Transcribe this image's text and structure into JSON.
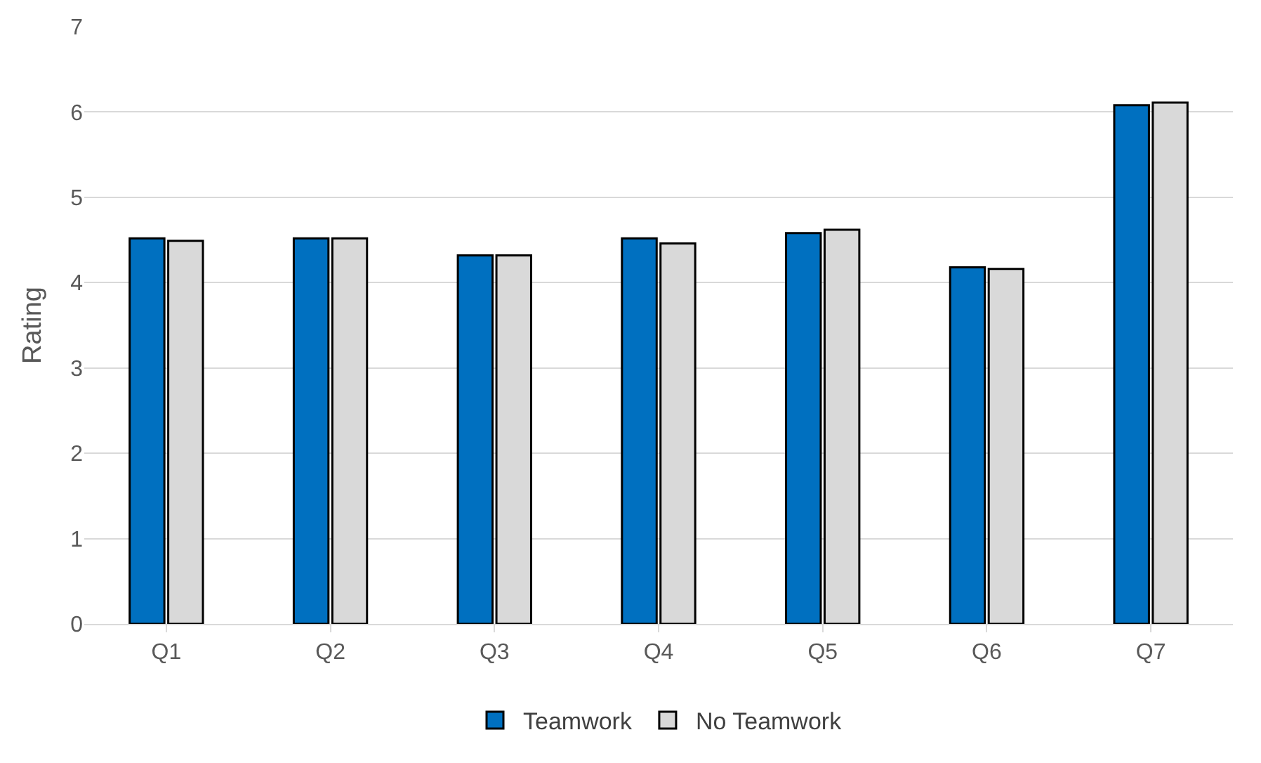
{
  "chart_data": {
    "type": "bar",
    "ylabel": "Rating",
    "categories": [
      "Q1",
      "Q2",
      "Q3",
      "Q4",
      "Q5",
      "Q6",
      "Q7"
    ],
    "series": [
      {
        "name": "Teamwork",
        "color": "#0070c0",
        "values": [
          4.52,
          4.52,
          4.32,
          4.52,
          4.58,
          4.18,
          6.08
        ]
      },
      {
        "name": "No Teamwork",
        "color": "#d9d9d9",
        "values": [
          4.49,
          4.52,
          4.32,
          4.46,
          4.62,
          4.16,
          6.11
        ]
      }
    ],
    "ylim": [
      0,
      7
    ],
    "yticks": [
      0,
      1,
      2,
      3,
      4,
      5,
      6,
      7
    ],
    "grid": "y",
    "legend": "bottom"
  }
}
